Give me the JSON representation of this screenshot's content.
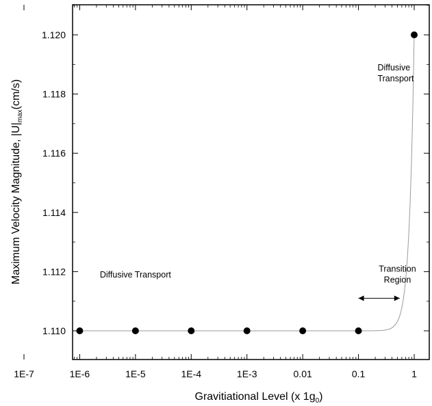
{
  "chart_data": {
    "type": "scatter",
    "xscale": "log",
    "xlim": [
      1e-07,
      1
    ],
    "ylim": [
      1.109,
      1.121
    ],
    "x_ticks": [
      1e-07,
      1e-06,
      1e-05,
      0.0001,
      0.001,
      0.01,
      0.1,
      1
    ],
    "x_tick_labels": [
      "1E-7",
      "1E-6",
      "1E-5",
      "1E-4",
      "1E-3",
      "0.01",
      "0.1",
      "1"
    ],
    "y_ticks": [
      1.11,
      1.112,
      1.114,
      1.116,
      1.118,
      1.12
    ],
    "y_tick_labels": [
      "1.110",
      "1.112",
      "1.114",
      "1.116",
      "1.118",
      "1.120"
    ],
    "xlabel": {
      "main": "Gravitiational Level (x 1g",
      "sub": "0",
      "end": ")"
    },
    "ylabel": {
      "main": "Maximum Velocity Magnitude, |U|",
      "sub": "max",
      "end": "(cm/s)"
    },
    "series": [
      {
        "x": [
          1e-06,
          1e-05,
          0.0001,
          0.001,
          0.01,
          0.1,
          1
        ],
        "y": [
          1.11,
          1.11,
          1.11,
          1.11,
          1.11,
          1.11,
          1.12
        ],
        "marker": "circle",
        "line": "smooth-gray",
        "marker_color": "#000000",
        "line_color": "#9a9a9a"
      }
    ],
    "annotations": [
      {
        "lines": [
          "Diffusive Transport"
        ],
        "x": 1e-05,
        "y": 1.1118,
        "anchor": "middle"
      },
      {
        "lines": [
          "Diffusive",
          "Transport"
        ],
        "x": 0.22,
        "y": 1.1188,
        "anchor": "start"
      },
      {
        "lines": [
          "Transition",
          "Region"
        ],
        "x": 0.5,
        "y": 1.112,
        "anchor": "middle"
      }
    ],
    "arrow": {
      "x_from": 0.1,
      "x_to": 0.55,
      "y": 1.1111
    },
    "grid": false
  }
}
